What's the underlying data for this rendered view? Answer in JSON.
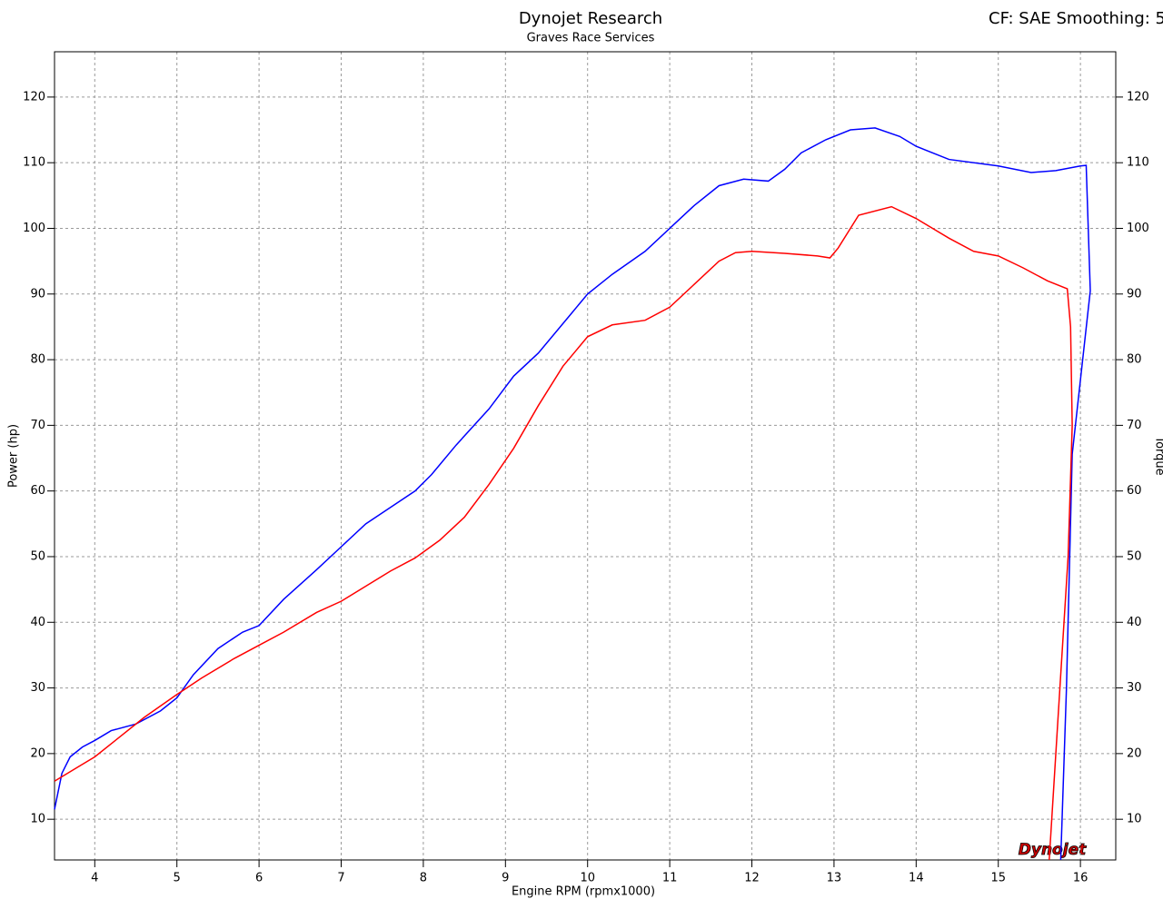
{
  "chart_data": {
    "type": "line",
    "title": "Dynojet Research",
    "subtitle": "Graves Race Services",
    "annotation": "CF: SAE Smoothing: 5",
    "logo": "Dynojet",
    "xlabel": "Engine RPM (rpmx1000)",
    "ylabel": "Power (hp)",
    "y2label": "Torque",
    "xlim": [
      3.51,
      16.43
    ],
    "ylim": [
      3.8,
      126.9
    ],
    "y2lim": [
      3.8,
      126.9
    ],
    "xticks": [
      4,
      5,
      6,
      7,
      8,
      9,
      10,
      11,
      12,
      13,
      14,
      15,
      16
    ],
    "yticks": [
      10,
      20,
      30,
      40,
      50,
      60,
      70,
      80,
      90,
      100,
      110,
      120
    ],
    "y2ticks": [
      10,
      20,
      30,
      40,
      50,
      60,
      70,
      80,
      90,
      100,
      110,
      120
    ],
    "grid": true,
    "series": [
      {
        "color": "#0000ff",
        "x": [
          3.51,
          3.6,
          3.7,
          3.85,
          4.0,
          4.2,
          4.5,
          4.8,
          5.0,
          5.2,
          5.5,
          5.8,
          6.0,
          6.3,
          6.7,
          7.0,
          7.3,
          7.6,
          7.9,
          8.1,
          8.4,
          8.8,
          9.1,
          9.4,
          9.8,
          10.0,
          10.3,
          10.7,
          11.0,
          11.3,
          11.6,
          11.9,
          12.2,
          12.4,
          12.6,
          12.9,
          13.2,
          13.5,
          13.8,
          14.0,
          14.4,
          15.0,
          15.4,
          15.7,
          16.0,
          16.07,
          16.12,
          15.9,
          15.83,
          15.76
        ],
        "values": [
          11.5,
          17,
          19.5,
          21,
          22,
          23.5,
          24.5,
          26.5,
          28.5,
          32,
          36,
          38.5,
          39.5,
          43.5,
          48,
          51.5,
          55,
          57.5,
          60,
          62.5,
          67,
          72.5,
          77.5,
          81,
          87,
          90,
          93,
          96.5,
          100,
          103.5,
          106.5,
          107.5,
          107.2,
          109,
          111.5,
          113.5,
          115,
          115.3,
          114,
          112.5,
          110.5,
          109.5,
          108.5,
          108.8,
          109.5,
          109.6,
          90.5,
          65.6,
          30,
          3.8
        ]
      },
      {
        "color": "#ff0000",
        "x": [
          3.51,
          3.8,
          4.0,
          4.3,
          4.6,
          5.0,
          5.3,
          5.7,
          6.0,
          6.3,
          6.7,
          7.0,
          7.3,
          7.6,
          7.9,
          8.2,
          8.5,
          8.8,
          9.1,
          9.4,
          9.7,
          10.0,
          10.3,
          10.7,
          11.0,
          11.3,
          11.6,
          11.8,
          12.0,
          12.4,
          12.8,
          12.95,
          13.05,
          13.3,
          13.7,
          14.0,
          14.4,
          14.7,
          15.0,
          15.3,
          15.6,
          15.84,
          15.88,
          15.9,
          15.85,
          15.75,
          15.62
        ],
        "values": [
          15.8,
          18,
          19.5,
          22.5,
          25.5,
          29,
          31.5,
          34.5,
          36.5,
          38.5,
          41.5,
          43.2,
          45.5,
          47.8,
          49.8,
          52.5,
          56,
          61,
          66.5,
          73,
          79,
          83.5,
          85.3,
          86,
          88,
          91.5,
          95,
          96.3,
          96.5,
          96.2,
          95.8,
          95.5,
          97,
          102,
          103.3,
          101.5,
          98.5,
          96.5,
          95.8,
          94,
          92,
          90.8,
          85,
          70,
          50,
          30,
          3.8
        ]
      }
    ]
  }
}
